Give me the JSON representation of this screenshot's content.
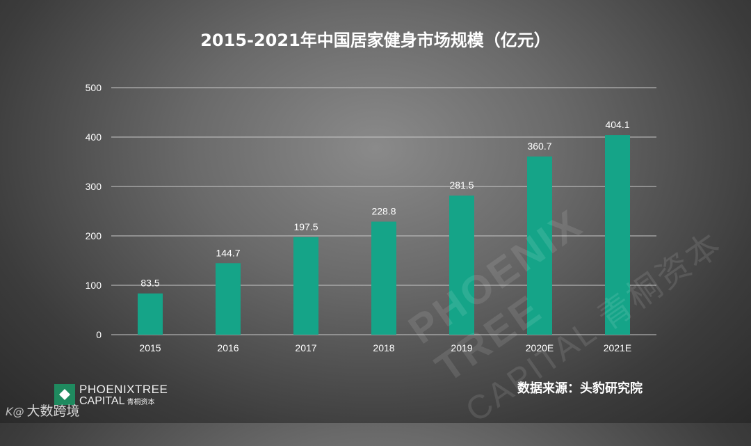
{
  "title": "2015-2021年中国居家健身市场规模（亿元）",
  "source_text": "数据来源：头豹研究院",
  "logo": {
    "line1": "PHOENIXTREE",
    "line2": "CAPITAL",
    "line2_cn": "青桐资本"
  },
  "watermark": {
    "line1": "PHOENIX TREE",
    "line2": "CAPITAL 青桐资本"
  },
  "brand": {
    "mark": "K@",
    "text": "大数跨境"
  },
  "colors": {
    "bar": "#15a488",
    "axis_text": "#ffffff",
    "grid": "#c8c8c8"
  },
  "chart_data": {
    "type": "bar",
    "title": "2015-2021年中国居家健身市场规模（亿元）",
    "categories": [
      "2015",
      "2016",
      "2017",
      "2018",
      "2019",
      "2020E",
      "2021E"
    ],
    "values": [
      83.5,
      144.7,
      197.5,
      228.8,
      281.5,
      360.7,
      404.1
    ],
    "value_labels": [
      "83.5",
      "144.7",
      "197.5",
      "228.8",
      "281.5",
      "360.7",
      "404.1"
    ],
    "xlabel": "",
    "ylabel": "",
    "ylim": [
      0,
      500
    ],
    "yticks": [
      "0",
      "100",
      "200",
      "300",
      "400",
      "500"
    ],
    "grid": true,
    "legend": "none"
  }
}
